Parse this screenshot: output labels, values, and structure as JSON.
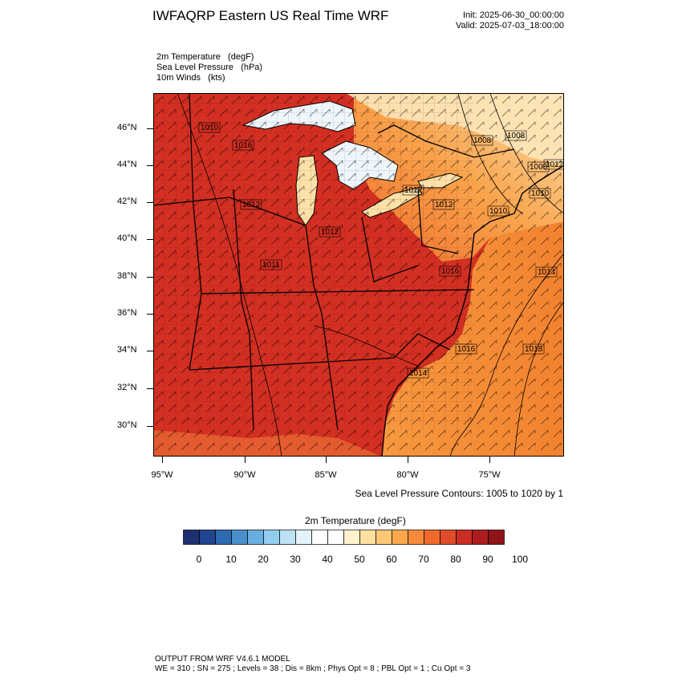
{
  "title": "IWFAQRP Eastern US Real Time WRF",
  "init": "Init: 2025-06-30_00:00:00",
  "valid": "Valid: 2025-07-03_18:00:00",
  "fields": [
    "2m Temperature   (degF)",
    "Sea Level Pressure   (hPa)",
    "10m Winds   (kts)"
  ],
  "lat_labels": [
    "46°N",
    "44°N",
    "42°N",
    "40°N",
    "38°N",
    "36°N",
    "34°N",
    "32°N",
    "30°N"
  ],
  "lon_labels": [
    "95°W",
    "90°W",
    "85°W",
    "80°W",
    "75°W"
  ],
  "contour_note": "Sea Level Pressure Contours: 1005 to 1020 by 1",
  "pressure_labels": [
    "1010",
    "1016",
    "1012",
    "1011",
    "1012",
    "1012",
    "1008",
    "1008",
    "1008",
    "1010",
    "1010",
    "1016",
    "1014",
    "1016",
    "1018",
    "1014",
    "1012",
    "1012"
  ],
  "colorbar": {
    "title": "2m Temperature  (degF)",
    "tick_labels": [
      "0",
      "10",
      "20",
      "30",
      "40",
      "50",
      "60",
      "70",
      "80",
      "90",
      "100"
    ],
    "colors": [
      "#1d2f6f",
      "#22458f",
      "#2f6ab1",
      "#4a8fcc",
      "#69aee0",
      "#92cdf0",
      "#bde2f6",
      "#e4f3fb",
      "#ffffff",
      "#ffffff",
      "#fff2cc",
      "#ffe0a0",
      "#fdc776",
      "#fba84d",
      "#f78a3a",
      "#ef6a2c",
      "#e04b29",
      "#c92d24",
      "#ad1c1f",
      "#8e1418"
    ]
  },
  "map_colors": {
    "land_hot": "#cc2a20",
    "land_warm": "#e2472a",
    "ocean": "#f5913f",
    "ocean_far": "#f07f35",
    "lakes": "#eaf4fb",
    "northeast": "#fbb35a",
    "canada": "#fde3b0"
  },
  "footer": {
    "line1": "OUTPUT FROM WRF V4.6.1 MODEL",
    "line2": "WE = 310 ; SN = 275 ; Levels = 38 ; Dis = 8km ; Phys Opt = 8 ; PBL Opt = 1 ; Cu Opt = 3"
  }
}
